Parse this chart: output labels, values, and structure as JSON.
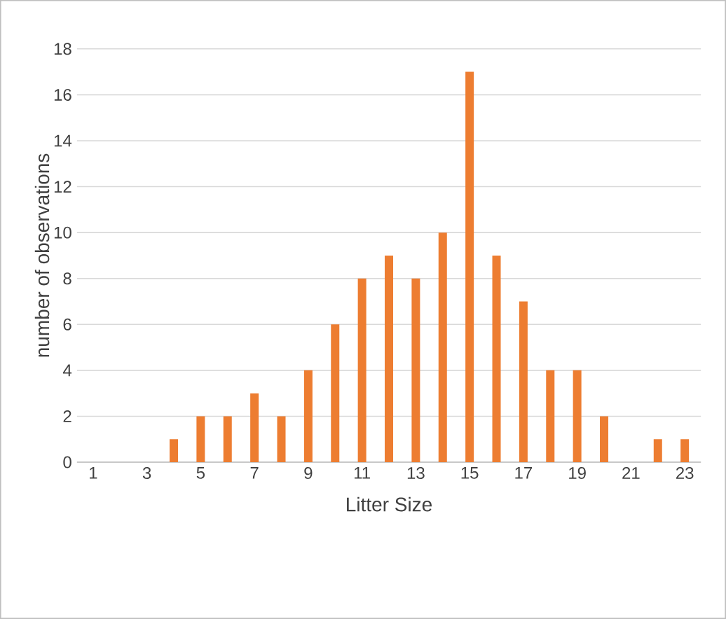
{
  "chart_data": {
    "type": "bar",
    "xlabel": "Litter Size",
    "ylabel": "number of observations",
    "categories": [
      "1",
      null,
      "3",
      null,
      "5",
      null,
      "7",
      null,
      "9",
      null,
      "11",
      null,
      "13",
      null,
      "15",
      null,
      "17",
      null,
      "19",
      null,
      "21",
      null,
      "23"
    ],
    "values": [
      0,
      0,
      0,
      1,
      2,
      2,
      3,
      2,
      4,
      6,
      8,
      9,
      8,
      10,
      17,
      9,
      7,
      4,
      4,
      2,
      0,
      1,
      1
    ],
    "color": "#ed7d31",
    "ylim": [
      0,
      18
    ],
    "yticks": [
      0,
      2,
      4,
      6,
      8,
      10,
      12,
      14,
      16,
      18
    ],
    "grid": "y"
  }
}
